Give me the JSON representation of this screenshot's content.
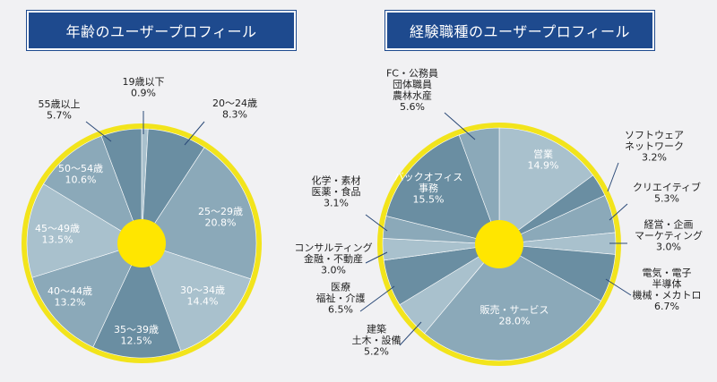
{
  "titles": {
    "left": "年齢のユーザープロフィール",
    "right": "経験職種のユーザープロフィール"
  },
  "colors": {
    "title_bg": "#1e4a8e",
    "ring": "#f2e41c",
    "center": "#ffe600",
    "slice_dark": "#6a8ea2",
    "slice_mid": "#8ba9b9",
    "slice_light": "#a9c1cd",
    "line": "#2b4a78"
  },
  "chart_data": [
    {
      "type": "pie",
      "title": "年齢のユーザープロフィール",
      "slices": [
        {
          "label": "19歳以下",
          "value": 0.9,
          "value_label": "0.9%"
        },
        {
          "label": "20〜24歳",
          "value": 8.3,
          "value_label": "8.3%"
        },
        {
          "label": "25〜29歳",
          "value": 20.8,
          "value_label": "20.8%"
        },
        {
          "label": "30〜34歳",
          "value": 14.4,
          "value_label": "14.4%"
        },
        {
          "label": "35〜39歳",
          "value": 12.5,
          "value_label": "12.5%"
        },
        {
          "label": "40〜44歳",
          "value": 13.2,
          "value_label": "13.2%"
        },
        {
          "label": "45〜49歳",
          "value": 13.5,
          "value_label": "13.5%"
        },
        {
          "label": "50〜54歳",
          "value": 10.6,
          "value_label": "10.6%"
        },
        {
          "label": "55歳以上",
          "value": 5.7,
          "value_label": "5.7%"
        }
      ]
    },
    {
      "type": "pie",
      "title": "経験職種のユーザープロフィール",
      "slices": [
        {
          "label": "営業",
          "value": 14.9,
          "value_label": "14.9%"
        },
        {
          "label": "ソフトウェア\nネットワーク",
          "value": 3.2,
          "value_label": "3.2%"
        },
        {
          "label": "クリエイティブ",
          "value": 5.3,
          "value_label": "5.3%"
        },
        {
          "label": "経営・企画\nマーケティング",
          "value": 3.0,
          "value_label": "3.0%"
        },
        {
          "label": "電気・電子\n半導体\n機械・メカトロ",
          "value": 6.7,
          "value_label": "6.7%"
        },
        {
          "label": "販売・サービス",
          "value": 28.0,
          "value_label": "28.0%"
        },
        {
          "label": "建築\n土木・設備",
          "value": 5.2,
          "value_label": "5.2%"
        },
        {
          "label": "医療\n福祉・介護",
          "value": 6.5,
          "value_label": "6.5%"
        },
        {
          "label": "コンサルティング\n金融・不動産",
          "value": 3.0,
          "value_label": "3.0%"
        },
        {
          "label": "化学・素材\n医薬・食品",
          "value": 3.1,
          "value_label": "3.1%"
        },
        {
          "label": "バックオフィス\n事務",
          "value": 15.5,
          "value_label": "15.5%"
        },
        {
          "label": "FC・公務員\n団体職員\n農林水産",
          "value": 5.6,
          "value_label": "5.6%"
        }
      ]
    }
  ]
}
